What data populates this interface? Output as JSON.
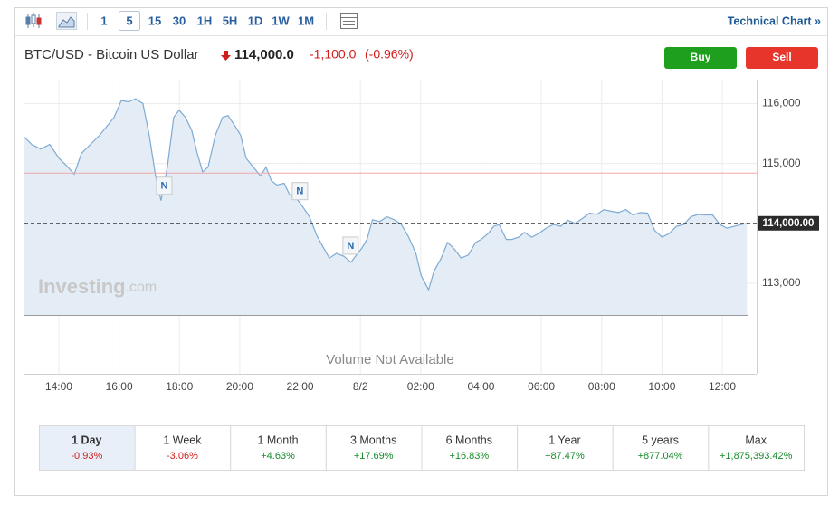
{
  "toolbar": {
    "intervals": [
      "1",
      "5",
      "15",
      "30",
      "1H",
      "5H",
      "1D",
      "1W",
      "1M"
    ],
    "selected_index": 1,
    "link": "Technical Chart »"
  },
  "header": {
    "title": "BTC/USD - Bitcoin US Dollar",
    "price": "114,000.0",
    "change": "-1,100.0",
    "change_pct": "(-0.96%)",
    "buy": "Buy",
    "sell": "Sell"
  },
  "chart_data": {
    "type": "line",
    "color": "#7eaad3",
    "area_color": "#e4edf6",
    "x": [
      12.86,
      13.1,
      13.4,
      13.7,
      14.0,
      14.3,
      14.51,
      14.75,
      15.05,
      15.35,
      15.59,
      15.83,
      16.07,
      16.31,
      16.55,
      16.79,
      17.0,
      17.21,
      17.39,
      17.6,
      17.81,
      17.99,
      18.2,
      18.41,
      18.59,
      18.77,
      18.95,
      19.19,
      19.43,
      19.61,
      19.85,
      20.03,
      20.21,
      20.45,
      20.69,
      20.87,
      21.05,
      21.23,
      21.47,
      21.65,
      21.89,
      22.07,
      22.31,
      22.55,
      22.79,
      22.97,
      23.21,
      23.45,
      23.69,
      23.87,
      24.04,
      24.22,
      24.4,
      24.64,
      24.88,
      25.12,
      25.36,
      25.6,
      25.84,
      26.02,
      26.26,
      26.44,
      26.68,
      26.89,
      27.1,
      27.34,
      27.58,
      27.82,
      28.0,
      28.24,
      28.42,
      28.6,
      28.84,
      29.02,
      29.26,
      29.44,
      29.68,
      29.92,
      30.16,
      30.4,
      30.64,
      30.88,
      31.12,
      31.36,
      31.6,
      31.84,
      32.08,
      32.32,
      32.56,
      32.8,
      33.04,
      33.28,
      33.52,
      33.76,
      34.0,
      34.24,
      34.48,
      34.72,
      34.96,
      35.2,
      35.44,
      35.68,
      35.92,
      36.16,
      36.4,
      36.64,
      36.82
    ],
    "values": [
      115440,
      115320,
      115240,
      115320,
      115090,
      114940,
      114820,
      115170,
      115320,
      115470,
      115620,
      115770,
      116050,
      116030,
      116080,
      116000,
      115470,
      114790,
      114380,
      114940,
      115770,
      115890,
      115770,
      115550,
      115170,
      114860,
      114940,
      115470,
      115770,
      115800,
      115620,
      115470,
      115090,
      114940,
      114790,
      114940,
      114710,
      114640,
      114670,
      114480,
      114410,
      114290,
      114110,
      113800,
      113580,
      113420,
      113500,
      113450,
      113350,
      113470,
      113580,
      113730,
      114060,
      114030,
      114110,
      114060,
      113980,
      113770,
      113500,
      113120,
      112890,
      113200,
      113420,
      113680,
      113580,
      113420,
      113470,
      113680,
      113730,
      113830,
      113950,
      113980,
      113730,
      113730,
      113770,
      113850,
      113770,
      113830,
      113920,
      113980,
      113950,
      114050,
      114000,
      114080,
      114170,
      114150,
      114230,
      114200,
      114180,
      114230,
      114140,
      114180,
      114170,
      113880,
      113770,
      113830,
      113950,
      113980,
      114110,
      114150,
      114140,
      114140,
      113980,
      113920,
      113950,
      113980,
      114000
    ],
    "xlim": [
      12.86,
      37.14
    ],
    "xticks": [
      {
        "value": 14,
        "label": "14:00"
      },
      {
        "value": 16,
        "label": "16:00"
      },
      {
        "value": 18,
        "label": "18:00"
      },
      {
        "value": 20,
        "label": "20:00"
      },
      {
        "value": 22,
        "label": "22:00"
      },
      {
        "value": 24,
        "label": "8/2"
      },
      {
        "value": 26,
        "label": "02:00"
      },
      {
        "value": 28,
        "label": "04:00"
      },
      {
        "value": 30,
        "label": "06:00"
      },
      {
        "value": 32,
        "label": "08:00"
      },
      {
        "value": 34,
        "label": "10:00"
      },
      {
        "value": 36,
        "label": "12:00"
      }
    ],
    "ylim": [
      112470,
      116400
    ],
    "yticks": [
      {
        "value": 113000,
        "label": "113,000"
      },
      {
        "value": 115000,
        "label": "115,000"
      },
      {
        "value": 116000,
        "label": "116,000"
      }
    ],
    "grid": true,
    "last_price": {
      "value": 114000,
      "label": "114,000.00"
    },
    "reference_line": 114840,
    "news_markers": [
      {
        "label": "N",
        "x": 17.48,
        "y": 114620
      },
      {
        "label": "N",
        "x": 21.98,
        "y": 114530
      },
      {
        "label": "N",
        "x": 23.66,
        "y": 113620
      }
    ],
    "watermark": [
      "Investing",
      ".com"
    ],
    "volume_note": "Volume Not Available"
  },
  "periods": {
    "selected_index": 0,
    "items": [
      {
        "label": "1 Day",
        "change": "-0.93%"
      },
      {
        "label": "1 Week",
        "change": "-3.06%"
      },
      {
        "label": "1 Month",
        "change": "+4.63%"
      },
      {
        "label": "3 Months",
        "change": "+17.69%"
      },
      {
        "label": "6 Months",
        "change": "+16.83%"
      },
      {
        "label": "1 Year",
        "change": "+87.47%"
      },
      {
        "label": "5 years",
        "change": "+877.04%"
      },
      {
        "label": "Max",
        "change": "+1,875,393.42%"
      }
    ]
  }
}
